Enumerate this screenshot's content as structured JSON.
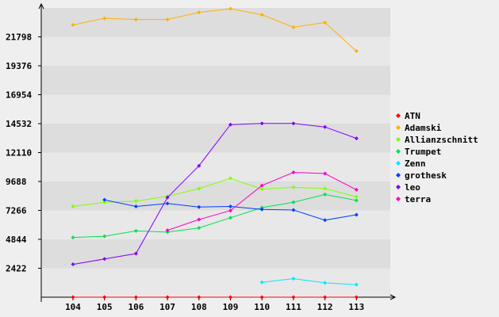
{
  "chart_data": {
    "type": "line",
    "x": [
      "104",
      "105",
      "106",
      "107",
      "108",
      "109",
      "110",
      "111",
      "112",
      "113"
    ],
    "y_ticks": [
      2422,
      4844,
      7266,
      9688,
      12110,
      14532,
      16954,
      19376,
      21798
    ],
    "ylim": [
      0,
      24220
    ],
    "grid": "horizontal bands",
    "legend_position": "right",
    "series": [
      {
        "name": "ATN",
        "color": "#ff0000",
        "values": [
          0,
          0,
          0,
          0,
          0,
          0,
          0,
          0,
          0,
          0
        ]
      },
      {
        "name": "Adamski",
        "color": "#ffb000",
        "values": [
          22800,
          23350,
          23250,
          23250,
          23850,
          24150,
          23650,
          22600,
          23000,
          20600
        ]
      },
      {
        "name": "Allianzschnitt",
        "color": "#80ff00",
        "values": [
          7600,
          7950,
          8050,
          8450,
          9100,
          9950,
          9050,
          9200,
          9100,
          8400
        ]
      },
      {
        "name": "Trumpet",
        "color": "#00e050",
        "values": [
          5000,
          5100,
          5550,
          5450,
          5800,
          6650,
          7500,
          7950,
          8600,
          8100
        ]
      },
      {
        "name": "Zenn",
        "color": "#00e8ff",
        "values": [
          null,
          null,
          null,
          null,
          null,
          null,
          1250,
          1550,
          1200,
          1050
        ]
      },
      {
        "name": "grothesk",
        "color": "#0040ff",
        "values": [
          null,
          8150,
          7600,
          7850,
          7550,
          7600,
          7350,
          7300,
          6450,
          6900
        ]
      },
      {
        "name": "leo",
        "color": "#8000ff",
        "values": [
          2750,
          3200,
          3650,
          8350,
          11000,
          14450,
          14550,
          14550,
          14250,
          13300
        ]
      },
      {
        "name": "terra",
        "color": "#ff00c0",
        "values": [
          null,
          null,
          null,
          5600,
          6500,
          7250,
          9350,
          10450,
          10350,
          9000
        ]
      }
    ]
  }
}
